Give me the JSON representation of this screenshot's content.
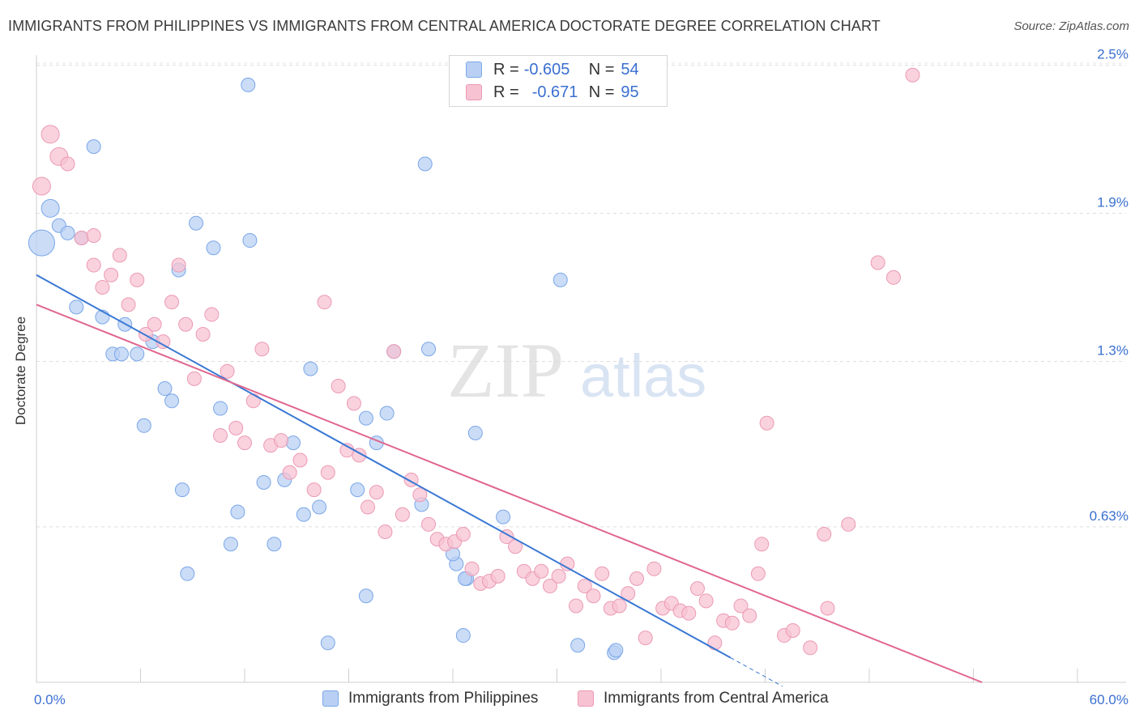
{
  "title": "IMMIGRANTS FROM PHILIPPINES VS IMMIGRANTS FROM CENTRAL AMERICA DOCTORATE DEGREE CORRELATION CHART",
  "source": "Source: ZipAtlas.com",
  "watermark": {
    "zip": "ZIP",
    "atlas": "atlas"
  },
  "legend": {
    "r_label": "R =",
    "n_label": "N =",
    "rows": [
      {
        "r": "-0.605",
        "n": "54"
      },
      {
        "r": "-0.671",
        "n": "95"
      }
    ]
  },
  "chart_data": {
    "type": "scatter",
    "xlabel": "",
    "ylabel": "Doctorate Degree",
    "xlim": [
      0,
      60
    ],
    "ylim": [
      0,
      2.6
    ],
    "x_tick_labels": [
      {
        "x": 0,
        "label": "0.0%"
      },
      {
        "x": 60,
        "label": "60.0%"
      }
    ],
    "y_ticks": [
      {
        "y": 0.63,
        "label": "0.63%"
      },
      {
        "y": 1.3,
        "label": "1.3%"
      },
      {
        "y": 1.9,
        "label": "1.9%"
      },
      {
        "y": 2.5,
        "label": "2.5%"
      }
    ],
    "grid": "horizontal dashed",
    "legend_position": "top-center",
    "series": [
      {
        "name": "Immigrants from Philippines",
        "color": "#7aa7e8",
        "fill": "#b9d0f4",
        "line_color": "#3a78d4",
        "trend": {
          "x0": 0,
          "y0": 1.65,
          "x1": 40,
          "y1": 0.1,
          "dash_to_x": 43
        },
        "points": [
          [
            0.3,
            1.78,
            3
          ],
          [
            0.8,
            1.92,
            2
          ],
          [
            1.3,
            1.85,
            1
          ],
          [
            1.8,
            1.82,
            1
          ],
          [
            2.6,
            1.8,
            1
          ],
          [
            3.3,
            2.17,
            1
          ],
          [
            2.3,
            1.52,
            1
          ],
          [
            3.8,
            1.48,
            1
          ],
          [
            5.1,
            1.45,
            1
          ],
          [
            4.4,
            1.33,
            1
          ],
          [
            4.9,
            1.33,
            1
          ],
          [
            5.8,
            1.33,
            1
          ],
          [
            6.7,
            1.38,
            1
          ],
          [
            7.4,
            1.19,
            1
          ],
          [
            7.8,
            1.14,
            1
          ],
          [
            6.2,
            1.04,
            1
          ],
          [
            9.2,
            1.86,
            1
          ],
          [
            8.2,
            1.67,
            1
          ],
          [
            10.2,
            1.76,
            1
          ],
          [
            12.3,
            1.79,
            1
          ],
          [
            10.6,
            1.11,
            1
          ],
          [
            8.4,
            0.78,
            1
          ],
          [
            11.6,
            0.69,
            1
          ],
          [
            11.2,
            0.56,
            1
          ],
          [
            13.1,
            0.81,
            1
          ],
          [
            13.7,
            0.56,
            1
          ],
          [
            14.3,
            0.82,
            1
          ],
          [
            14.8,
            0.97,
            1
          ],
          [
            15.4,
            0.68,
            1
          ],
          [
            16.3,
            0.71,
            1
          ],
          [
            15.8,
            1.27,
            1
          ],
          [
            16.8,
            0.16,
            1
          ],
          [
            18.5,
            0.78,
            1
          ],
          [
            19.0,
            0.35,
            1
          ],
          [
            19.0,
            1.07,
            1
          ],
          [
            19.6,
            0.97,
            1
          ],
          [
            20.2,
            1.09,
            1
          ],
          [
            20.6,
            1.34,
            1
          ],
          [
            22.2,
            0.72,
            1
          ],
          [
            22.6,
            1.35,
            1
          ],
          [
            22.4,
            2.1,
            1
          ],
          [
            24.2,
            0.48,
            1
          ],
          [
            24.0,
            0.52,
            1
          ],
          [
            24.6,
            0.19,
            1
          ],
          [
            24.8,
            0.42,
            1
          ],
          [
            24.7,
            0.42,
            1
          ],
          [
            25.3,
            1.01,
            1
          ],
          [
            26.9,
            0.67,
            1
          ],
          [
            30.2,
            1.63,
            1
          ],
          [
            31.2,
            0.15,
            1
          ],
          [
            33.3,
            0.12,
            1
          ],
          [
            33.4,
            0.13,
            1
          ],
          [
            12.2,
            2.42,
            1
          ],
          [
            8.7,
            0.44,
            1
          ]
        ]
      },
      {
        "name": "Immigrants from Central America",
        "color": "#ec9ab4",
        "fill": "#f7c3d3",
        "line_color": "#e0668e",
        "trend": {
          "x0": 0,
          "y0": 1.53,
          "x1": 54.5,
          "y1": 0.0
        },
        "points": [
          [
            0.3,
            2.01,
            2
          ],
          [
            0.8,
            2.22,
            2
          ],
          [
            1.3,
            2.13,
            2
          ],
          [
            1.8,
            2.1,
            1
          ],
          [
            2.6,
            1.8,
            1
          ],
          [
            3.3,
            1.81,
            1
          ],
          [
            3.3,
            1.69,
            1
          ],
          [
            3.8,
            1.6,
            1
          ],
          [
            4.3,
            1.65,
            1
          ],
          [
            4.8,
            1.73,
            1
          ],
          [
            5.3,
            1.53,
            1
          ],
          [
            5.8,
            1.63,
            1
          ],
          [
            6.3,
            1.41,
            1
          ],
          [
            6.8,
            1.45,
            1
          ],
          [
            7.3,
            1.38,
            1
          ],
          [
            7.8,
            1.54,
            1
          ],
          [
            8.2,
            1.69,
            1
          ],
          [
            8.6,
            1.45,
            1
          ],
          [
            9.1,
            1.23,
            1
          ],
          [
            9.6,
            1.41,
            1
          ],
          [
            10.1,
            1.49,
            1
          ],
          [
            10.6,
            1.0,
            1
          ],
          [
            11.0,
            1.26,
            1
          ],
          [
            11.5,
            1.03,
            1
          ],
          [
            12.0,
            0.97,
            1
          ],
          [
            12.5,
            1.14,
            1
          ],
          [
            13.0,
            1.35,
            1
          ],
          [
            13.5,
            0.96,
            1
          ],
          [
            14.1,
            0.98,
            1
          ],
          [
            14.6,
            0.85,
            1
          ],
          [
            15.2,
            0.9,
            1
          ],
          [
            16.0,
            0.78,
            1
          ],
          [
            16.6,
            1.54,
            1
          ],
          [
            16.8,
            0.85,
            1
          ],
          [
            17.4,
            1.2,
            1
          ],
          [
            17.9,
            0.94,
            1
          ],
          [
            18.3,
            1.13,
            1
          ],
          [
            18.6,
            0.92,
            1
          ],
          [
            19.1,
            0.71,
            1
          ],
          [
            19.6,
            0.77,
            1
          ],
          [
            20.1,
            0.61,
            1
          ],
          [
            20.6,
            1.34,
            1
          ],
          [
            21.1,
            0.68,
            1
          ],
          [
            21.6,
            0.82,
            1
          ],
          [
            22.1,
            0.76,
            1
          ],
          [
            22.6,
            0.64,
            1
          ],
          [
            23.1,
            0.58,
            1
          ],
          [
            23.6,
            0.56,
            1
          ],
          [
            24.1,
            0.57,
            1
          ],
          [
            24.6,
            0.6,
            1
          ],
          [
            25.1,
            0.46,
            1
          ],
          [
            25.6,
            0.4,
            1
          ],
          [
            26.1,
            0.41,
            1
          ],
          [
            26.6,
            0.43,
            1
          ],
          [
            27.1,
            0.59,
            1
          ],
          [
            27.6,
            0.55,
            1
          ],
          [
            28.1,
            0.45,
            1
          ],
          [
            28.6,
            0.42,
            1
          ],
          [
            29.1,
            0.45,
            1
          ],
          [
            29.6,
            0.39,
            1
          ],
          [
            30.1,
            0.43,
            1
          ],
          [
            30.6,
            0.48,
            1
          ],
          [
            31.1,
            0.31,
            1
          ],
          [
            31.6,
            0.39,
            1
          ],
          [
            32.1,
            0.35,
            1
          ],
          [
            32.6,
            0.44,
            1
          ],
          [
            33.1,
            0.3,
            1
          ],
          [
            33.6,
            0.31,
            1
          ],
          [
            34.1,
            0.36,
            1
          ],
          [
            34.6,
            0.42,
            1
          ],
          [
            35.1,
            0.18,
            1
          ],
          [
            35.6,
            0.46,
            1
          ],
          [
            36.1,
            0.3,
            1
          ],
          [
            36.6,
            0.32,
            1
          ],
          [
            37.1,
            0.29,
            1
          ],
          [
            37.6,
            0.28,
            1
          ],
          [
            38.1,
            0.38,
            1
          ],
          [
            38.6,
            0.33,
            1
          ],
          [
            39.1,
            0.16,
            1
          ],
          [
            39.6,
            0.25,
            1
          ],
          [
            40.1,
            0.24,
            1
          ],
          [
            40.6,
            0.31,
            1
          ],
          [
            41.1,
            0.27,
            1
          ],
          [
            41.6,
            0.44,
            1
          ],
          [
            41.8,
            0.56,
            1
          ],
          [
            42.1,
            1.05,
            1
          ],
          [
            43.1,
            0.19,
            1
          ],
          [
            43.6,
            0.21,
            1
          ],
          [
            44.6,
            0.14,
            1
          ],
          [
            45.6,
            0.3,
            1
          ],
          [
            45.4,
            0.6,
            1
          ],
          [
            46.8,
            0.64,
            1
          ],
          [
            48.5,
            1.7,
            1
          ],
          [
            49.4,
            1.64,
            1
          ],
          [
            50.5,
            2.46,
            1
          ]
        ]
      }
    ]
  }
}
